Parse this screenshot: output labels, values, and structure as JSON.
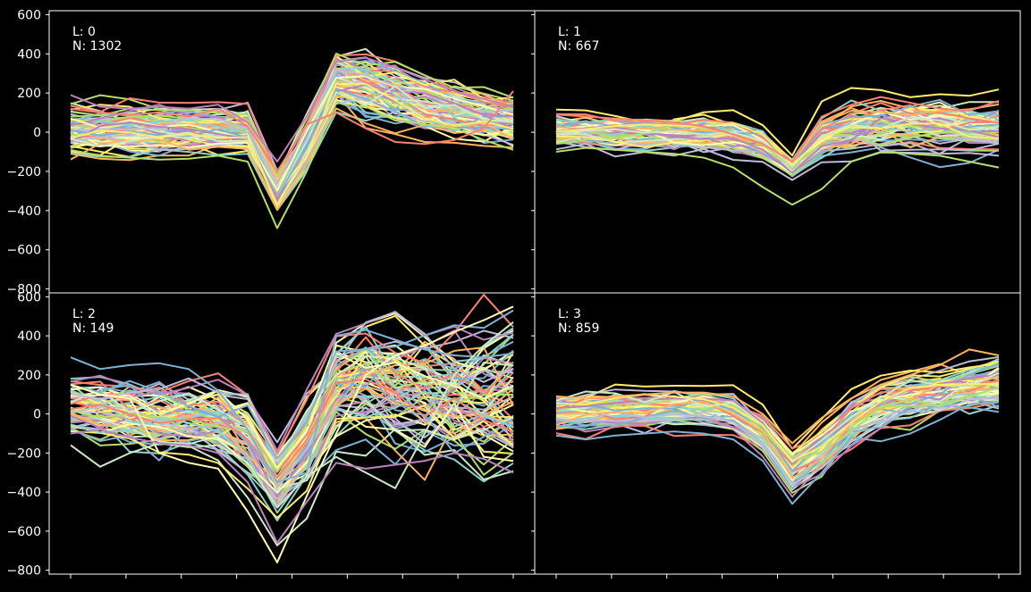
{
  "chart_data": {
    "type": "line",
    "layout": "2x2 panels, shared axes",
    "background": "#000000",
    "foreground": "#ffffff",
    "x_samples": 16,
    "x_tick_count": 9,
    "x_tick_labels": [],
    "ylim": [
      -820,
      620
    ],
    "yticks": [
      600,
      400,
      200,
      0,
      -200,
      -400,
      -600,
      -800
    ],
    "ytick_labels": [
      "600",
      "400",
      "200",
      "0",
      "−200",
      "−400",
      "−600",
      "−800"
    ],
    "grid": false,
    "palette": [
      "#8dd3c7",
      "#feffb3",
      "#bfbbd9",
      "#fa8174",
      "#81b1d2",
      "#fdb462",
      "#b3de69",
      "#bc82bd",
      "#ccebc4",
      "#ffed6f"
    ],
    "panels": [
      {
        "label_text": "L: 0",
        "count_text": "N: 1302",
        "n_traces": 90,
        "mean": [
          10,
          15,
          15,
          12,
          12,
          20,
          10,
          -300,
          -50,
          270,
          240,
          190,
          140,
          110,
          80,
          60
        ],
        "spread": [
          55,
          55,
          55,
          55,
          55,
          55,
          50,
          45,
          60,
          65,
          75,
          75,
          70,
          65,
          60,
          60
        ],
        "extreme_traces": [
          {
            "series": 6,
            "values": [
              -90,
              -120,
              -130,
              -140,
              -135,
              -120,
              -150,
              -490,
              -200,
              150,
              130,
              60,
              40,
              20,
              -40,
              -90
            ]
          },
          {
            "series": 7,
            "values": [
              190,
              130,
              120,
              130,
              120,
              140,
              50,
              -150,
              80,
              360,
              380,
              330,
              270,
              210,
              170,
              130
            ]
          },
          {
            "series": 3,
            "values": [
              120,
              100,
              90,
              100,
              80,
              120,
              30,
              -200,
              40,
              100,
              20,
              -50,
              -60,
              -40,
              20,
              210
            ]
          }
        ]
      },
      {
        "label_text": "L: 1",
        "count_text": "N: 667",
        "n_traces": 80,
        "mean": [
          10,
          10,
          5,
          0,
          -5,
          -10,
          -20,
          -60,
          -180,
          -20,
          20,
          40,
          40,
          35,
          30,
          30
        ],
        "spread": [
          45,
          45,
          45,
          45,
          45,
          45,
          45,
          45,
          25,
          55,
          60,
          60,
          60,
          60,
          60,
          60
        ],
        "extreme_traces": [
          {
            "series": 6,
            "values": [
              -100,
              -80,
              -90,
              -100,
              -110,
              -130,
              -180,
              -280,
              -370,
              -290,
              -150,
              -100,
              -110,
              -120,
              -150,
              -180
            ]
          },
          {
            "series": 3,
            "values": [
              90,
              80,
              70,
              60,
              50,
              30,
              -10,
              -60,
              -150,
              80,
              140,
              180,
              150,
              120,
              110,
              160
            ]
          }
        ]
      },
      {
        "label_text": "L: 2",
        "count_text": "N: 149",
        "n_traces": 75,
        "mean": [
          40,
          20,
          0,
          -10,
          -5,
          -30,
          -100,
          -350,
          -150,
          150,
          200,
          150,
          120,
          120,
          110,
          110
        ],
        "spread": [
          70,
          75,
          80,
          80,
          80,
          90,
          110,
          90,
          110,
          130,
          140,
          150,
          160,
          170,
          180,
          190
        ],
        "extreme_traces": [
          {
            "series": 1,
            "values": [
              150,
              100,
              80,
              -200,
              -250,
              -280,
              -500,
              -760,
              -420,
              -100,
              200,
              300,
              350,
              420,
              480,
              550
            ]
          },
          {
            "series": 4,
            "values": [
              290,
              230,
              250,
              260,
              230,
              120,
              -80,
              -350,
              -300,
              400,
              430,
              380,
              330,
              300,
              290,
              310
            ]
          },
          {
            "series": 8,
            "values": [
              -160,
              -270,
              -200,
              -150,
              -170,
              -160,
              -250,
              -480,
              -320,
              -220,
              -300,
              -380,
              -100,
              200,
              350,
              470
            ]
          },
          {
            "series": 7,
            "values": [
              -100,
              -80,
              -120,
              -150,
              -160,
              -200,
              -350,
              -660,
              -450,
              -250,
              -280,
              -260,
              -240,
              -200,
              -230,
              -300
            ]
          }
        ]
      },
      {
        "label_text": "L: 3",
        "count_text": "N: 859",
        "n_traces": 80,
        "mean": [
          0,
          10,
          20,
          20,
          30,
          30,
          10,
          -100,
          -290,
          -180,
          -40,
          40,
          80,
          110,
          140,
          160
        ],
        "spread": [
          40,
          40,
          40,
          40,
          40,
          40,
          40,
          40,
          45,
          50,
          50,
          50,
          55,
          55,
          60,
          60
        ],
        "extreme_traces": [
          {
            "series": 4,
            "values": [
              -110,
              -130,
              -110,
              -100,
              -90,
              -100,
              -130,
              -240,
              -460,
              -300,
              -120,
              -140,
              -100,
              -30,
              50,
              60
            ]
          },
          {
            "series": 5,
            "values": [
              90,
              80,
              90,
              100,
              110,
              110,
              90,
              0,
              -150,
              -20,
              80,
              150,
              200,
              250,
              330,
              300
            ]
          }
        ]
      }
    ]
  }
}
